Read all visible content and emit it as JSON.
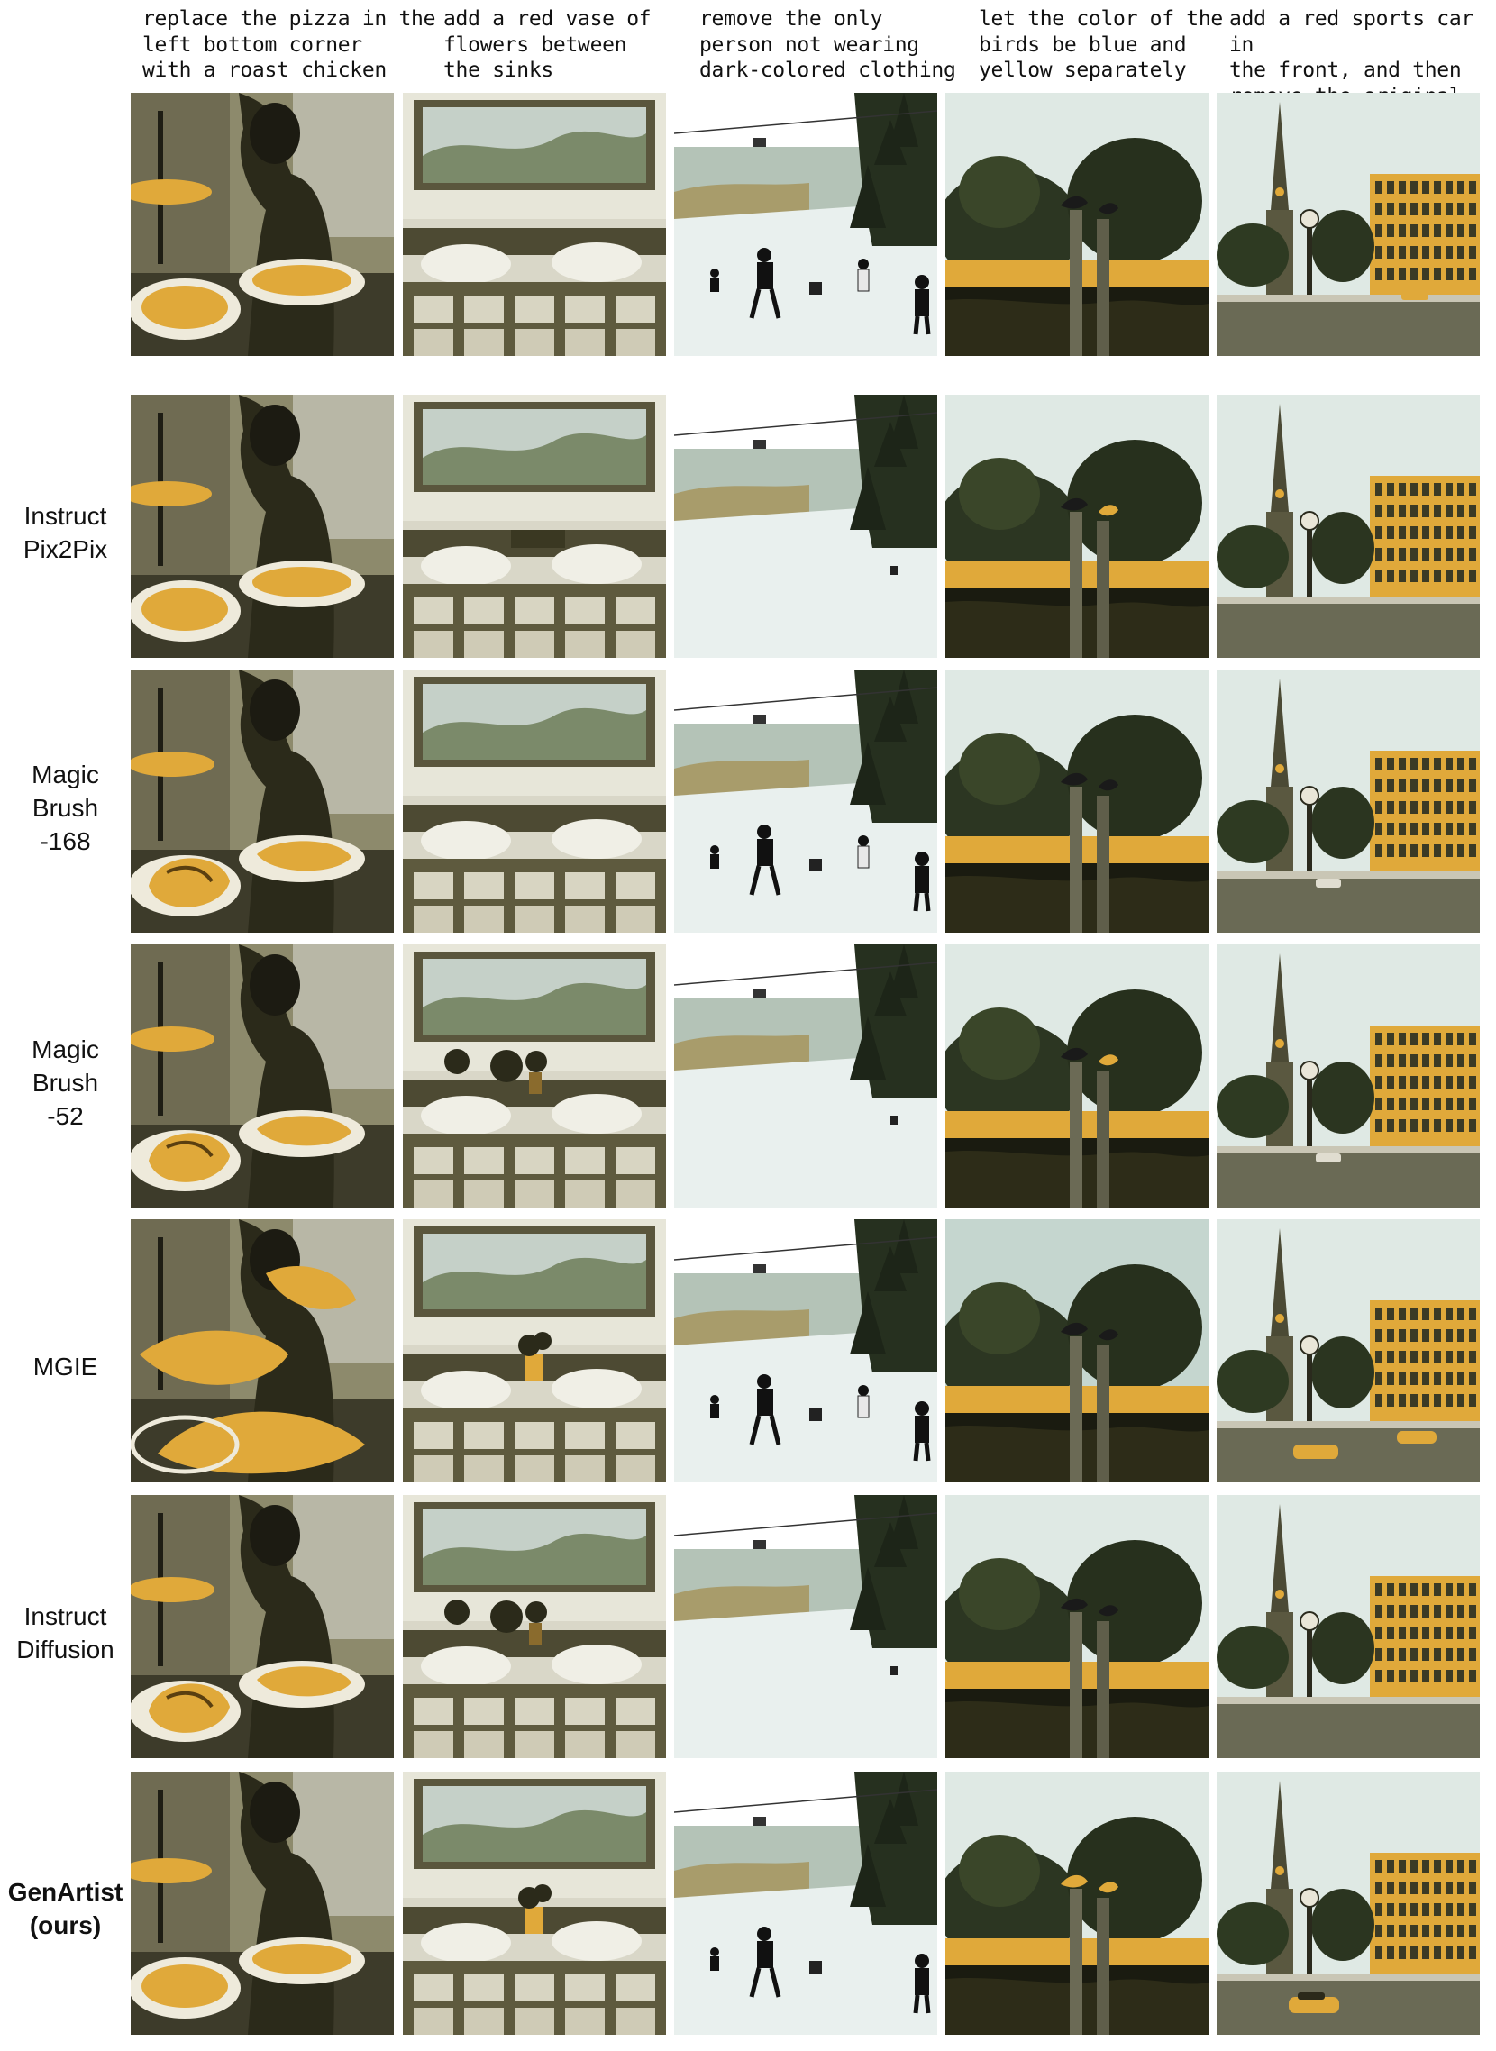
{
  "columns": [
    {
      "id": "pizza",
      "instruction": "replace the pizza in the\nleft bottom corner\nwith a roast chicken"
    },
    {
      "id": "vase",
      "instruction": "add a red vase of\nflowers between\nthe sinks"
    },
    {
      "id": "skier",
      "instruction": "remove the only\nperson not wearing\ndark-colored clothing"
    },
    {
      "id": "birds",
      "instruction": "let the color of the\nbirds be blue and\nyellow separately"
    },
    {
      "id": "car",
      "instruction": "add a red sports car in\nthe front, and then\nremove the original one"
    }
  ],
  "rows": [
    {
      "id": "input",
      "label": ""
    },
    {
      "id": "instructpix2pix",
      "label": "Instruct\nPix2Pix"
    },
    {
      "id": "magicbrush168",
      "label": "Magic\nBrush\n-168"
    },
    {
      "id": "magicbrush52",
      "label": "Magic\nBrush\n-52"
    },
    {
      "id": "mgie",
      "label": "MGIE"
    },
    {
      "id": "instructdiffusion",
      "label": "Instruct\nDiffusion"
    },
    {
      "id": "genartist",
      "label": "GenArtist\n(ours)"
    }
  ],
  "colors": {
    "accent": "#e0a93a",
    "dark": "#2b2a1a",
    "sky": "#dfe9e4",
    "snow": "#e9f0ee"
  }
}
